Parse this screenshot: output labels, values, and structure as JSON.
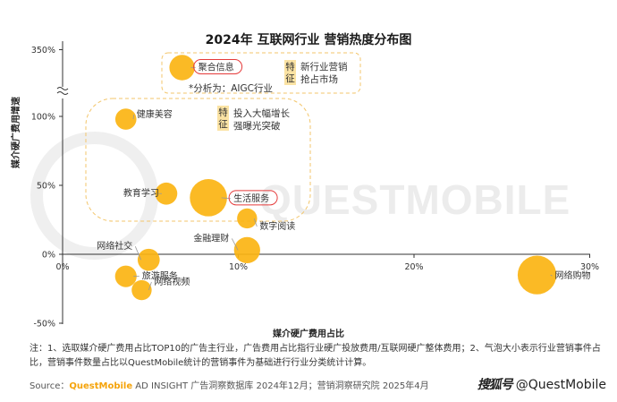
{
  "watermark": "QUESTMOBILE",
  "footnote": "注：1、选取媒介硬广费用占比TOP10的广告主行业，广告费用占比指行业硬广投放费用/互联网硬广整体费用；2、气泡大小表示行业营销事件占比，营销事件数量占比以QuestMobile统计的营销事件为基础进行行业分类统计计算。",
  "source": {
    "prefix": "Source：",
    "brand": "QuestMobile",
    "text": " AD INSIGHT 广告洞察数据库 2024年12月；营销洞察研究院 2025年4月"
  },
  "signature": {
    "logo": "搜狐号",
    "handle": "@QuestMobile"
  },
  "chart_data": {
    "type": "scatter",
    "title": "2024年 互联网行业 营销热度分布图",
    "xlabel": "媒介硬广费用占比",
    "ylabel": "媒介硬广费用增速",
    "x_ticks": [
      "0%",
      "10%",
      "20%",
      "30%"
    ],
    "y_ticks": [
      "350%",
      "100%",
      "50%",
      "0%",
      "-50%"
    ],
    "xlim": [
      0,
      30
    ],
    "ylim": [
      -50,
      100
    ],
    "y_axis_break": true,
    "grid": false,
    "bubble_color": "#fbb412",
    "highlight_color": "#e53b3b",
    "points": [
      {
        "name": "聚合信息",
        "x": 6.8,
        "y": 350,
        "size": 2.2,
        "highlight": true
      },
      {
        "name": "健康美容",
        "x": 3.6,
        "y": 98,
        "size": 1.2,
        "highlight": false
      },
      {
        "name": "教育学习",
        "x": 5.9,
        "y": 44,
        "size": 1.4,
        "highlight": false
      },
      {
        "name": "生活服务",
        "x": 8.3,
        "y": 41,
        "size": 6.5,
        "highlight": true
      },
      {
        "name": "数字阅读",
        "x": 10.5,
        "y": 26,
        "size": 1.0,
        "highlight": false
      },
      {
        "name": "金融理财",
        "x": 10.5,
        "y": 3,
        "size": 2.4,
        "highlight": false
      },
      {
        "name": "网络社交",
        "x": 4.9,
        "y": -4,
        "size": 1.4,
        "highlight": false
      },
      {
        "name": "旅游服务",
        "x": 3.6,
        "y": -16,
        "size": 1.3,
        "highlight": false
      },
      {
        "name": "网络视频",
        "x": 4.5,
        "y": -26,
        "size": 1.0,
        "highlight": false
      },
      {
        "name": "网络购物",
        "x": 27,
        "y": -15,
        "size": 7.2,
        "highlight": false
      }
    ],
    "annotations": [
      {
        "tag": "特征",
        "lines": [
          "新行业营销",
          "抢占市场"
        ],
        "note": "*分析为：AIGC行业"
      },
      {
        "tag": "特征",
        "lines": [
          "投入大幅增长",
          "强曝光突破"
        ]
      }
    ]
  }
}
